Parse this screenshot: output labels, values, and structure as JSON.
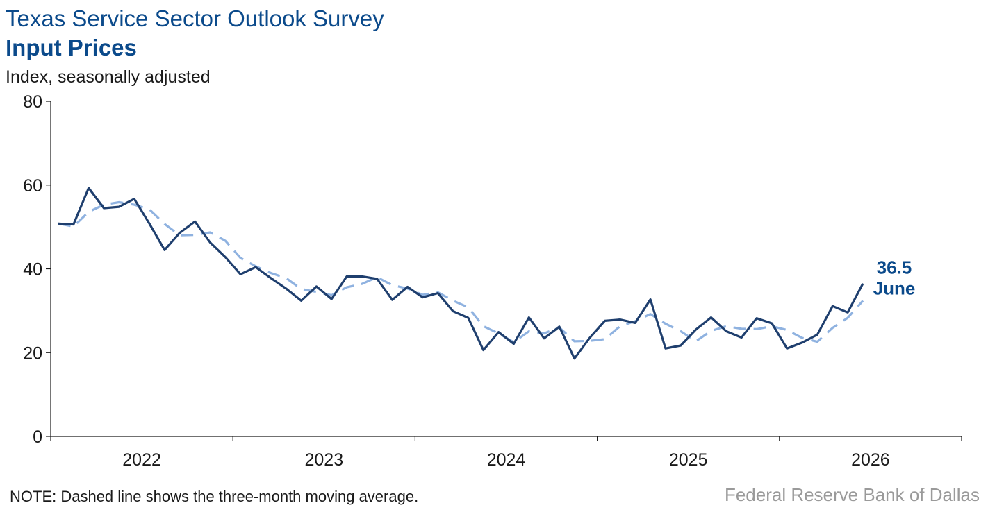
{
  "chart_data": {
    "type": "line",
    "title": "Texas Service Sector Outlook Survey",
    "subtitle": "Input Prices",
    "ylabel": "Index, seasonally adjusted",
    "ylim": [
      0,
      80
    ],
    "yticks": [
      0,
      20,
      40,
      60,
      80
    ],
    "xlim": [
      "2022-01",
      "2026-12"
    ],
    "xtick_labels": [
      "2022",
      "2023",
      "2024",
      "2025",
      "2026"
    ],
    "grid": false,
    "x": [
      "2022-01",
      "2022-02",
      "2022-03",
      "2022-04",
      "2022-05",
      "2022-06",
      "2022-07",
      "2022-08",
      "2022-09",
      "2022-10",
      "2022-11",
      "2022-12",
      "2023-01",
      "2023-02",
      "2023-03",
      "2023-04",
      "2023-05",
      "2023-06",
      "2023-07",
      "2023-08",
      "2023-09",
      "2023-10",
      "2023-11",
      "2023-12",
      "2024-01",
      "2024-02",
      "2024-03",
      "2024-04",
      "2024-05",
      "2024-06",
      "2024-07",
      "2024-08",
      "2024-09",
      "2024-10",
      "2024-11",
      "2024-12",
      "2025-01",
      "2025-02",
      "2025-03",
      "2025-04",
      "2025-05",
      "2025-06",
      "2025-07",
      "2025-08",
      "2025-09",
      "2025-10",
      "2025-11",
      "2025-12",
      "2026-01",
      "2026-02",
      "2026-03",
      "2026-04",
      "2026-05",
      "2026-06"
    ],
    "series": [
      {
        "style": "solid",
        "color": "#1f3f6e",
        "values": [
          50.8,
          50.6,
          59.3,
          54.5,
          54.8,
          56.7,
          50.8,
          44.5,
          48.6,
          51.3,
          46.3,
          42.8,
          38.7,
          40.4,
          37.8,
          35.3,
          32.4,
          35.8,
          32.8,
          38.2,
          38.2,
          37.6,
          32.6,
          35.7,
          33.2,
          34.2,
          29.9,
          28.3,
          20.6,
          24.9,
          22.1,
          28.4,
          23.4,
          26.2,
          18.6,
          23.5,
          27.6,
          27.9,
          27.1,
          32.7,
          21.0,
          21.7,
          25.5,
          28.4,
          25.1,
          23.6,
          28.2,
          27.0,
          21.0,
          22.4,
          24.3,
          31.1,
          29.6,
          36.5
        ]
      },
      {
        "style": "dashed",
        "color": "#8fb2e0",
        "values": [
          50.8,
          50.1,
          53.6,
          55.3,
          55.9,
          55.3,
          54.2,
          50.7,
          48.0,
          48.1,
          48.7,
          46.7,
          42.6,
          40.6,
          39.0,
          37.8,
          35.2,
          34.5,
          33.7,
          35.6,
          36.4,
          38.0,
          36.1,
          35.3,
          33.8,
          34.4,
          32.4,
          30.8,
          26.3,
          24.6,
          22.5,
          25.1,
          24.6,
          26.0,
          22.7,
          22.8,
          23.2,
          26.3,
          27.5,
          29.2,
          26.9,
          25.1,
          22.7,
          25.2,
          26.3,
          25.7,
          25.6,
          26.3,
          25.4,
          23.5,
          22.6,
          25.9,
          28.3,
          32.4
        ]
      }
    ],
    "annotation": {
      "value": "36.5",
      "label": "June"
    }
  },
  "note": "NOTE: Dashed line shows the three-month moving average.",
  "source": "Federal Reserve Bank of Dallas"
}
